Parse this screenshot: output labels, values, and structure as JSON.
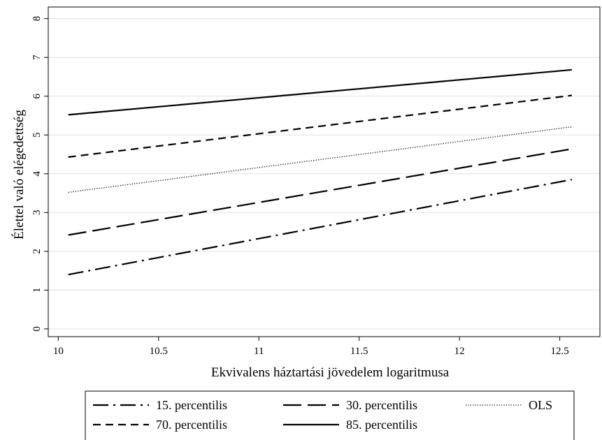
{
  "chart_data": {
    "type": "line",
    "xlabel": "Ekvivalens háztartási jövedelem logaritmusa",
    "ylabel": "Élettel való elégedettség",
    "xlim": [
      9.95,
      12.7
    ],
    "ylim": [
      -0.2,
      8.3
    ],
    "xticks": [
      "10",
      "10.5",
      "11",
      "11.5",
      "12",
      "12.5"
    ],
    "yticks": [
      "0",
      "1",
      "2",
      "3",
      "4",
      "5",
      "6",
      "7",
      "8"
    ],
    "grid": "horizontal",
    "legend_position": "bottom",
    "series": [
      {
        "name": "15. percentilis",
        "dash": "dash-dot",
        "x": [
          10.05,
          12.56
        ],
        "y": [
          1.4,
          3.85
        ]
      },
      {
        "name": "30. percentilis",
        "dash": "long-dash",
        "x": [
          10.05,
          12.56
        ],
        "y": [
          2.42,
          4.64
        ]
      },
      {
        "name": "OLS",
        "dash": "dotted",
        "x": [
          10.05,
          12.56
        ],
        "y": [
          3.52,
          5.21
        ]
      },
      {
        "name": "70. percentilis",
        "dash": "short-dash",
        "x": [
          10.05,
          12.56
        ],
        "y": [
          4.43,
          6.02
        ]
      },
      {
        "name": "85. percentilis",
        "dash": "solid",
        "x": [
          10.05,
          12.56
        ],
        "y": [
          5.52,
          6.68
        ]
      }
    ]
  }
}
